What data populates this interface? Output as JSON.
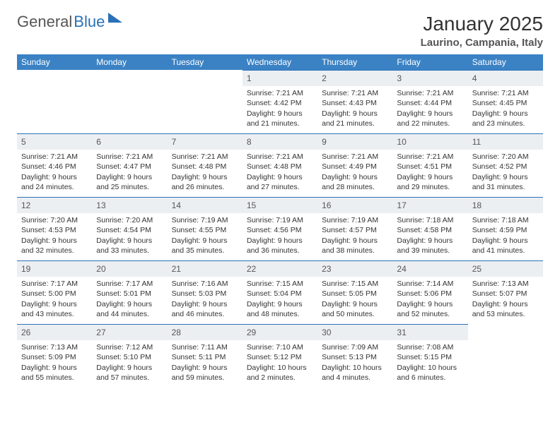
{
  "logo": {
    "part1": "General",
    "part2": "Blue"
  },
  "title": "January 2025",
  "location": "Laurino, Campania, Italy",
  "colors": {
    "header_bg": "#3b82c4",
    "header_text": "#ffffff",
    "daynum_bg": "#eceff2",
    "rule": "#2a71b8",
    "body_text": "#333333",
    "page_bg": "#ffffff"
  },
  "dayHeaders": [
    "Sunday",
    "Monday",
    "Tuesday",
    "Wednesday",
    "Thursday",
    "Friday",
    "Saturday"
  ],
  "weeks": [
    [
      {
        "n": "",
        "empty": true
      },
      {
        "n": "",
        "empty": true
      },
      {
        "n": "",
        "empty": true
      },
      {
        "n": "1",
        "sunrise": "7:21 AM",
        "sunset": "4:42 PM",
        "daylight": "9 hours and 21 minutes."
      },
      {
        "n": "2",
        "sunrise": "7:21 AM",
        "sunset": "4:43 PM",
        "daylight": "9 hours and 21 minutes."
      },
      {
        "n": "3",
        "sunrise": "7:21 AM",
        "sunset": "4:44 PM",
        "daylight": "9 hours and 22 minutes."
      },
      {
        "n": "4",
        "sunrise": "7:21 AM",
        "sunset": "4:45 PM",
        "daylight": "9 hours and 23 minutes."
      }
    ],
    [
      {
        "n": "5",
        "sunrise": "7:21 AM",
        "sunset": "4:46 PM",
        "daylight": "9 hours and 24 minutes."
      },
      {
        "n": "6",
        "sunrise": "7:21 AM",
        "sunset": "4:47 PM",
        "daylight": "9 hours and 25 minutes."
      },
      {
        "n": "7",
        "sunrise": "7:21 AM",
        "sunset": "4:48 PM",
        "daylight": "9 hours and 26 minutes."
      },
      {
        "n": "8",
        "sunrise": "7:21 AM",
        "sunset": "4:48 PM",
        "daylight": "9 hours and 27 minutes."
      },
      {
        "n": "9",
        "sunrise": "7:21 AM",
        "sunset": "4:49 PM",
        "daylight": "9 hours and 28 minutes."
      },
      {
        "n": "10",
        "sunrise": "7:21 AM",
        "sunset": "4:51 PM",
        "daylight": "9 hours and 29 minutes."
      },
      {
        "n": "11",
        "sunrise": "7:20 AM",
        "sunset": "4:52 PM",
        "daylight": "9 hours and 31 minutes."
      }
    ],
    [
      {
        "n": "12",
        "sunrise": "7:20 AM",
        "sunset": "4:53 PM",
        "daylight": "9 hours and 32 minutes."
      },
      {
        "n": "13",
        "sunrise": "7:20 AM",
        "sunset": "4:54 PM",
        "daylight": "9 hours and 33 minutes."
      },
      {
        "n": "14",
        "sunrise": "7:19 AM",
        "sunset": "4:55 PM",
        "daylight": "9 hours and 35 minutes."
      },
      {
        "n": "15",
        "sunrise": "7:19 AM",
        "sunset": "4:56 PM",
        "daylight": "9 hours and 36 minutes."
      },
      {
        "n": "16",
        "sunrise": "7:19 AM",
        "sunset": "4:57 PM",
        "daylight": "9 hours and 38 minutes."
      },
      {
        "n": "17",
        "sunrise": "7:18 AM",
        "sunset": "4:58 PM",
        "daylight": "9 hours and 39 minutes."
      },
      {
        "n": "18",
        "sunrise": "7:18 AM",
        "sunset": "4:59 PM",
        "daylight": "9 hours and 41 minutes."
      }
    ],
    [
      {
        "n": "19",
        "sunrise": "7:17 AM",
        "sunset": "5:00 PM",
        "daylight": "9 hours and 43 minutes."
      },
      {
        "n": "20",
        "sunrise": "7:17 AM",
        "sunset": "5:01 PM",
        "daylight": "9 hours and 44 minutes."
      },
      {
        "n": "21",
        "sunrise": "7:16 AM",
        "sunset": "5:03 PM",
        "daylight": "9 hours and 46 minutes."
      },
      {
        "n": "22",
        "sunrise": "7:15 AM",
        "sunset": "5:04 PM",
        "daylight": "9 hours and 48 minutes."
      },
      {
        "n": "23",
        "sunrise": "7:15 AM",
        "sunset": "5:05 PM",
        "daylight": "9 hours and 50 minutes."
      },
      {
        "n": "24",
        "sunrise": "7:14 AM",
        "sunset": "5:06 PM",
        "daylight": "9 hours and 52 minutes."
      },
      {
        "n": "25",
        "sunrise": "7:13 AM",
        "sunset": "5:07 PM",
        "daylight": "9 hours and 53 minutes."
      }
    ],
    [
      {
        "n": "26",
        "sunrise": "7:13 AM",
        "sunset": "5:09 PM",
        "daylight": "9 hours and 55 minutes."
      },
      {
        "n": "27",
        "sunrise": "7:12 AM",
        "sunset": "5:10 PM",
        "daylight": "9 hours and 57 minutes."
      },
      {
        "n": "28",
        "sunrise": "7:11 AM",
        "sunset": "5:11 PM",
        "daylight": "9 hours and 59 minutes."
      },
      {
        "n": "29",
        "sunrise": "7:10 AM",
        "sunset": "5:12 PM",
        "daylight": "10 hours and 2 minutes."
      },
      {
        "n": "30",
        "sunrise": "7:09 AM",
        "sunset": "5:13 PM",
        "daylight": "10 hours and 4 minutes."
      },
      {
        "n": "31",
        "sunrise": "7:08 AM",
        "sunset": "5:15 PM",
        "daylight": "10 hours and 6 minutes."
      },
      {
        "n": "",
        "empty": true
      }
    ]
  ],
  "labels": {
    "sunrise": "Sunrise: ",
    "sunset": "Sunset: ",
    "daylight": "Daylight: "
  }
}
